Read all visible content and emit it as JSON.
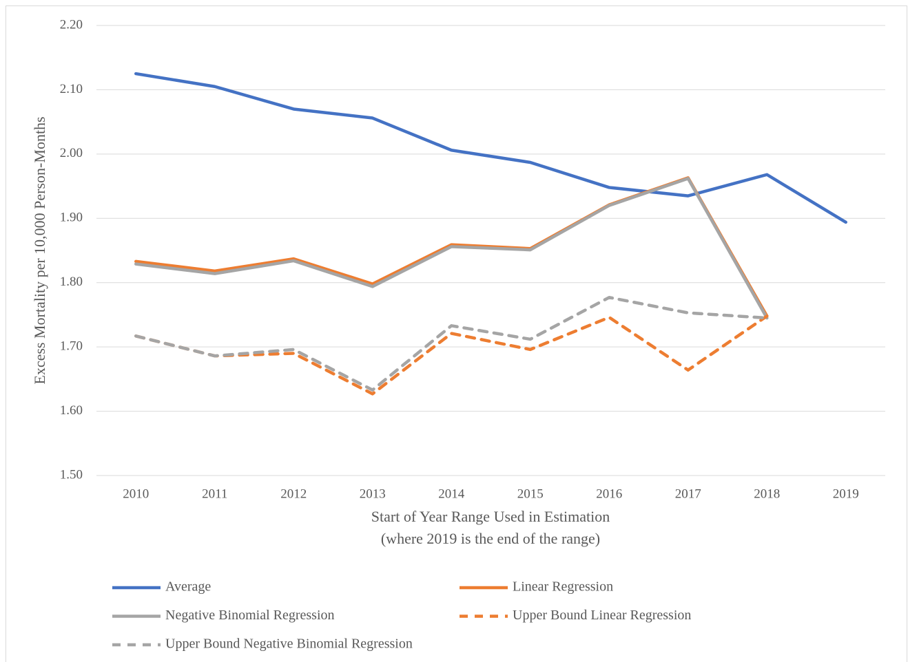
{
  "chart_data": {
    "type": "line",
    "categories": [
      "2010",
      "2011",
      "2012",
      "2013",
      "2014",
      "2015",
      "2016",
      "2017",
      "2018",
      "2019"
    ],
    "series": [
      {
        "name": "Average",
        "color": "#4472c4",
        "dashed": false,
        "values": [
          2.125,
          2.105,
          2.07,
          2.056,
          2.006,
          1.987,
          1.948,
          1.935,
          1.968,
          1.894
        ]
      },
      {
        "name": "Linear Regression",
        "color": "#ed7d31",
        "dashed": false,
        "values": [
          1.833,
          1.818,
          1.837,
          1.798,
          1.859,
          1.853,
          1.921,
          1.963,
          1.748,
          null
        ]
      },
      {
        "name": "Negative Binomial Regression",
        "color": "#a5a5a5",
        "dashed": false,
        "values": [
          1.829,
          1.814,
          1.834,
          1.794,
          1.856,
          1.851,
          1.92,
          1.962,
          1.745,
          null
        ]
      },
      {
        "name": "Upper Bound Linear Regression",
        "color": "#ed7d31",
        "dashed": true,
        "values": [
          1.717,
          1.686,
          1.69,
          1.627,
          1.721,
          1.696,
          1.746,
          1.664,
          1.748,
          null
        ]
      },
      {
        "name": "Upper Bound Negative Binomial Regression",
        "color": "#a5a5a5",
        "dashed": true,
        "values": [
          1.717,
          1.686,
          1.696,
          1.633,
          1.733,
          1.712,
          1.777,
          1.753,
          1.745,
          null
        ]
      }
    ],
    "ylabel": "Excess Mortality per 10,000 Person-Months",
    "xlabel": [
      "Start of Year Range Used in Estimation",
      "(where 2019 is the end of the range)"
    ],
    "ylim": [
      1.5,
      2.2
    ],
    "yticks": [
      {
        "value": 1.5,
        "label": "1.50"
      },
      {
        "value": 1.6,
        "label": "1.60"
      },
      {
        "value": 1.7,
        "label": "1.70"
      },
      {
        "value": 1.8,
        "label": "1.80"
      },
      {
        "value": 1.9,
        "label": "1.90"
      },
      {
        "value": 2.0,
        "label": "2.00"
      },
      {
        "value": 2.1,
        "label": "2.10"
      },
      {
        "value": 2.2,
        "label": "2.20"
      }
    ],
    "grid": true,
    "legend": "bottom"
  }
}
